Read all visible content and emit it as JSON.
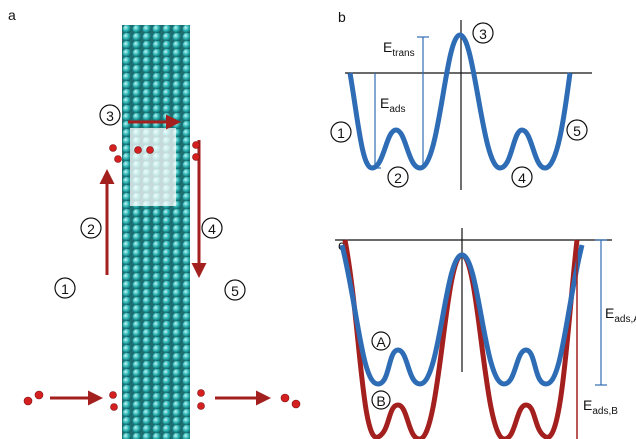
{
  "panel_a": {
    "label": "a",
    "steps": [
      "1",
      "2",
      "3",
      "4",
      "5"
    ]
  },
  "panel_b": {
    "label": "b",
    "states": [
      "1",
      "2",
      "3",
      "4",
      "5"
    ],
    "e_trans": {
      "symbol": "E",
      "subscript": "trans"
    },
    "e_ads": {
      "symbol": "E",
      "subscript": "ads"
    }
  },
  "panel_c": {
    "label": "c",
    "curves": [
      "A",
      "B"
    ],
    "e_ads_a": {
      "symbol": "E",
      "subscript": "ads,A"
    },
    "e_ads_b": {
      "symbol": "E",
      "subscript": "ads,B"
    }
  }
}
